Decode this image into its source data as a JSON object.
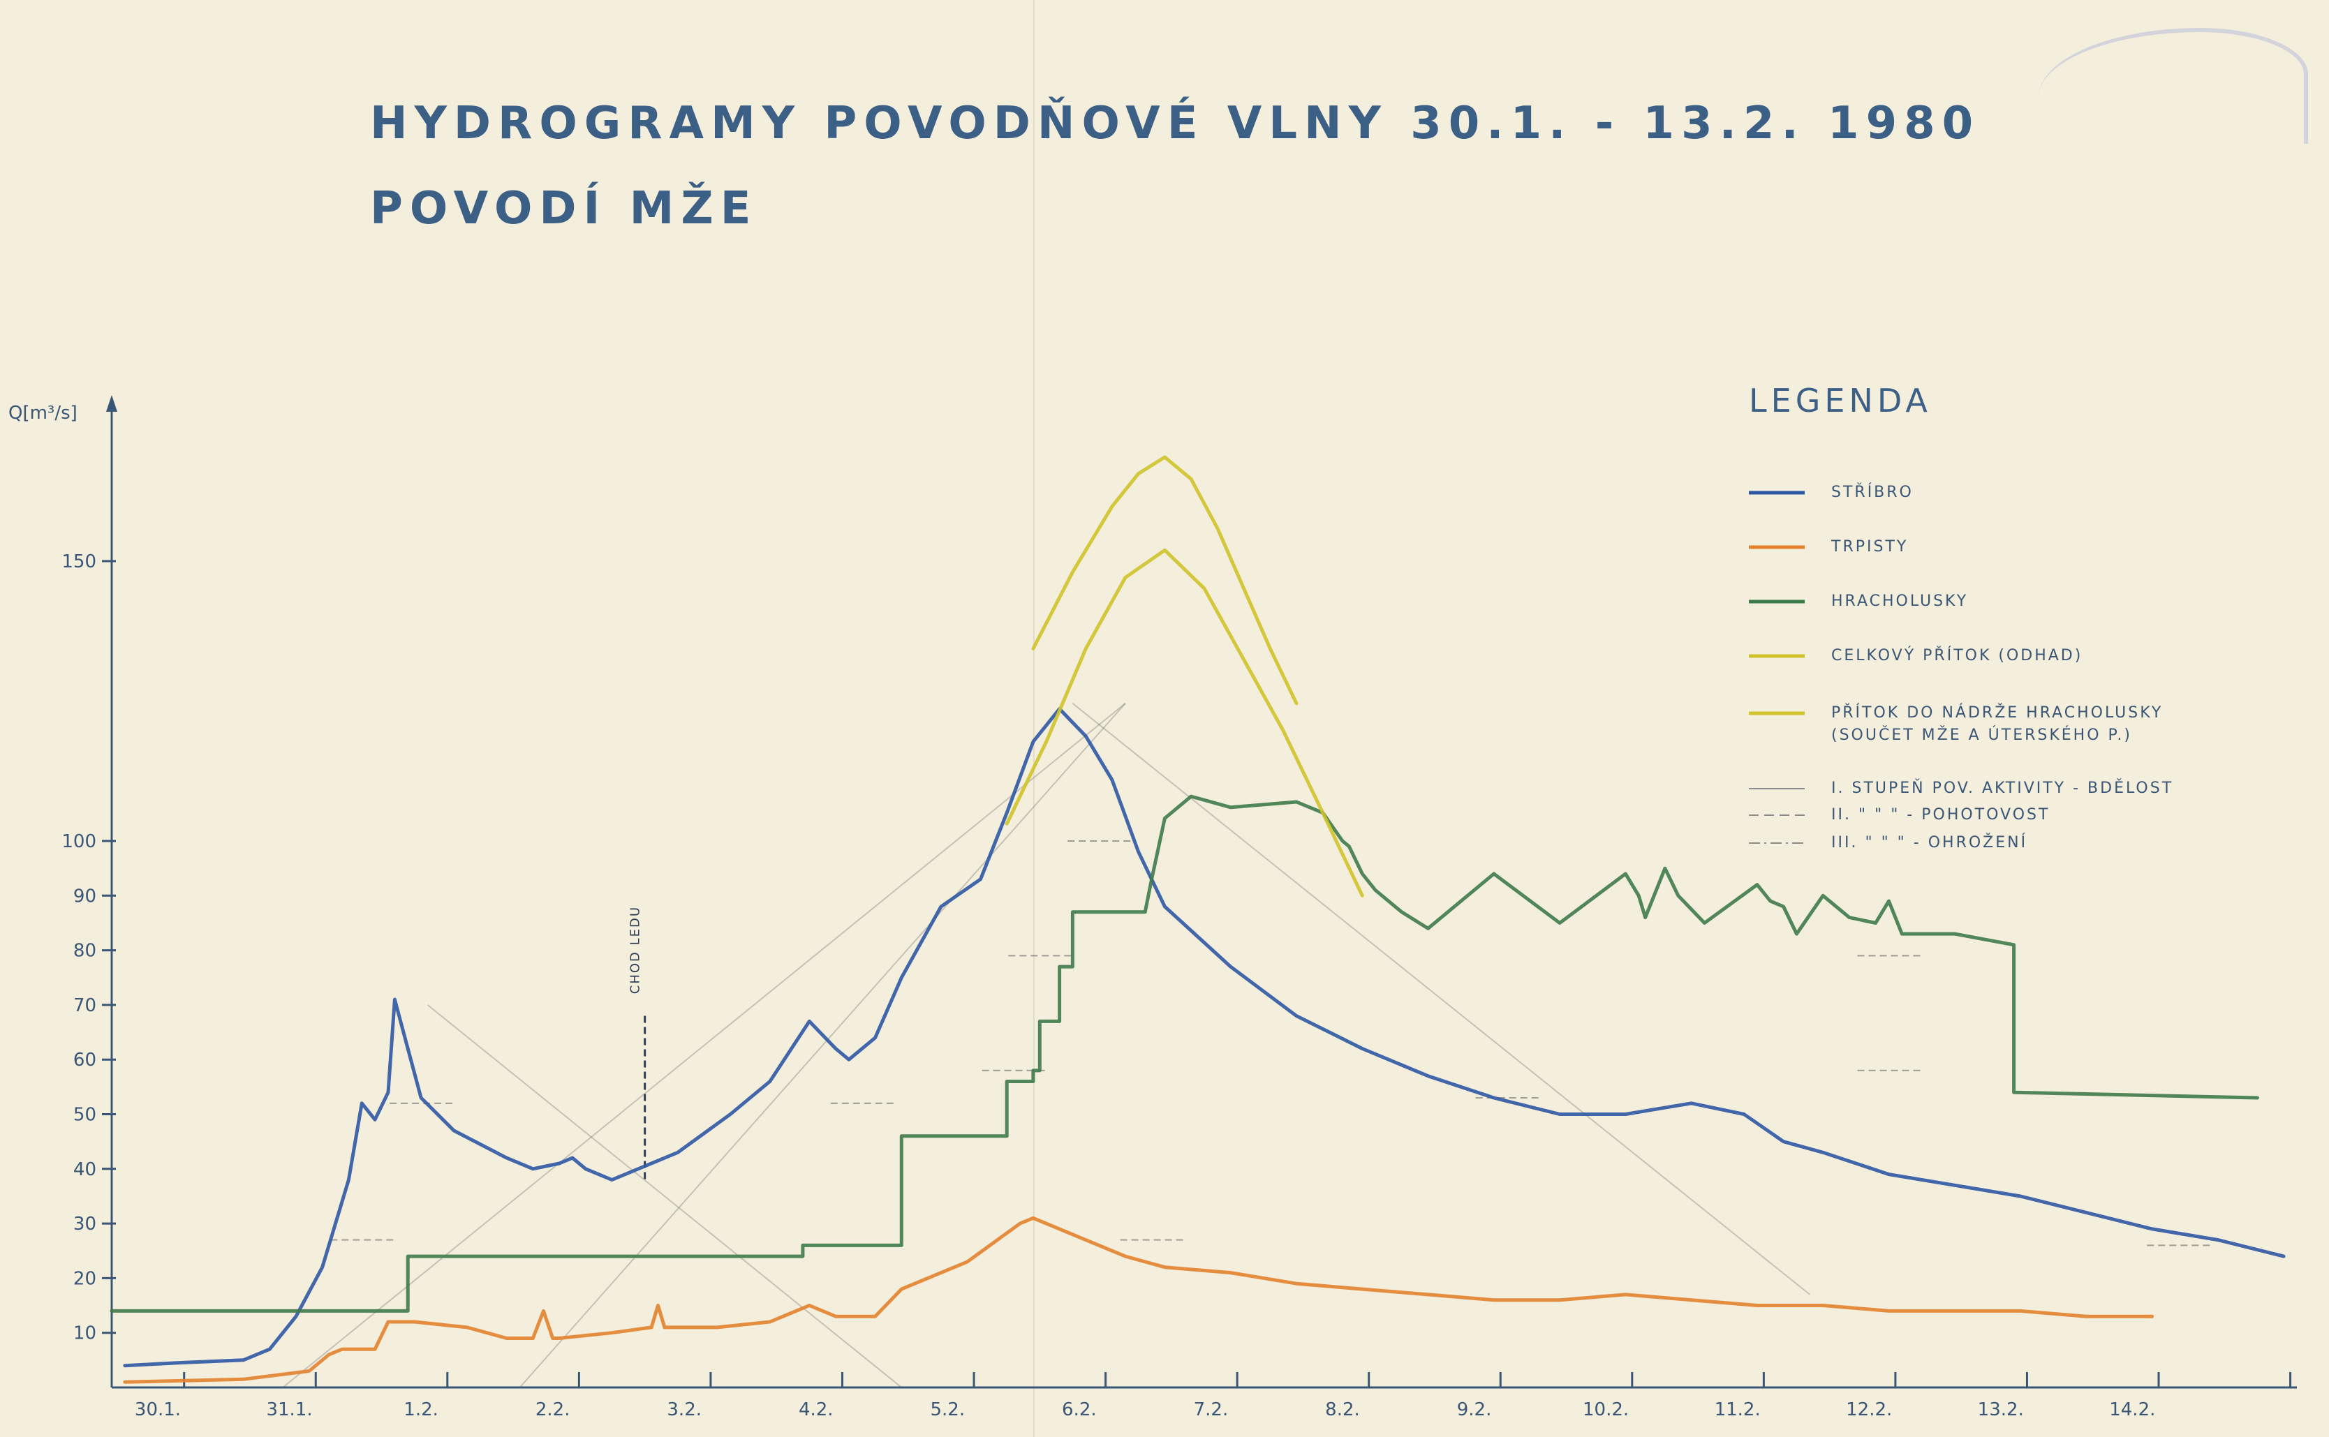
{
  "header": {
    "title": "HYDROGRAMY POVODŇOVÉ VLNY   30.1.  - 13.2. 1980",
    "subtitle": "POVODÍ MŽE"
  },
  "chart_data": {
    "type": "line",
    "ylabel": "Q[m³/s]",
    "ylim": [
      0,
      180
    ],
    "yticks": [
      10,
      20,
      30,
      40,
      50,
      60,
      70,
      80,
      90,
      100,
      150
    ],
    "x_tick_labels": [
      "30.1.",
      "31.1.",
      "1.2.",
      "2.2.",
      "3.2.",
      "4.2.",
      "5.2.",
      "6.2.",
      "7.2.",
      "8.2.",
      "9.2.",
      "10.2.",
      "11.2.",
      "12.2.",
      "13.2.",
      "14.2."
    ],
    "xlim": [
      0,
      16.6
    ],
    "grid": false,
    "legend_position": "top-right",
    "legend": {
      "title": "LEGENDA",
      "items": [
        {
          "label": "STŘÍBRO",
          "color": "#2e56a3",
          "style": "solid"
        },
        {
          "label": "TRPISTY",
          "color": "#e3822e",
          "style": "solid"
        },
        {
          "label": "HRACHOLUSKY",
          "color": "#3e7a4a",
          "style": "solid"
        },
        {
          "label": "CELKOVÝ PŘÍTOK (ODHAD)",
          "color": "#cfc22a",
          "style": "solid"
        },
        {
          "label": "PŘÍTOK DO NÁDRŽE HRACHOLUSKY",
          "label2": "(SOUČET MŽE A ÚTERSKÉHO P.)",
          "color": "#cfc22a",
          "style": "solid"
        },
        {
          "label": "I. STUPEŇ POV. AKTIVITY   - BDĚLOST",
          "color": "#8a8a8a",
          "style": "solid"
        },
        {
          "label": "II.      \"        \"        \"      - POHOTOVOST",
          "color": "#8a8a8a",
          "style": "dashed"
        },
        {
          "label": "III.     \"        \"        \"      - OHROŽENÍ",
          "color": "#8a8a8a",
          "style": "dashdot"
        }
      ]
    },
    "annotations": [
      {
        "text": "CHOD LEDU",
        "x": 4.05
      }
    ],
    "series": [
      {
        "name": "STŘÍBRO",
        "color": "#2e56a3",
        "x": [
          0.1,
          0.5,
          1.0,
          1.2,
          1.4,
          1.6,
          1.8,
          1.9,
          2.0,
          2.1,
          2.15,
          2.25,
          2.35,
          2.6,
          3.0,
          3.2,
          3.4,
          3.5,
          3.6,
          3.8,
          4.0,
          4.3,
          4.7,
          5.0,
          5.3,
          5.5,
          5.6,
          5.8,
          6.0,
          6.3,
          6.6,
          6.8,
          7.0,
          7.2,
          7.4,
          7.6,
          7.8,
          8.0,
          8.5,
          9.0,
          9.5,
          10.0,
          10.5,
          11.0,
          11.5,
          12.0,
          12.4,
          12.7,
          13.0,
          13.5,
          14.0,
          14.5,
          15.0,
          15.5,
          16.0,
          16.5
        ],
        "y": [
          4,
          4.5,
          5,
          7,
          13,
          22,
          38,
          52,
          49,
          54,
          71,
          62,
          53,
          47,
          42,
          40,
          41,
          42,
          40,
          38,
          40,
          43,
          50,
          56,
          67,
          62,
          60,
          64,
          75,
          88,
          93,
          104,
          117,
          123,
          118,
          110,
          98,
          88,
          77,
          68,
          62,
          57,
          53,
          50,
          50,
          52,
          50,
          45,
          43,
          39,
          37,
          35,
          32,
          29,
          27,
          24
        ]
      },
      {
        "name": "TRPISTY",
        "color": "#e3822e",
        "x": [
          0.1,
          1.0,
          1.5,
          1.65,
          1.75,
          2.0,
          2.1,
          2.3,
          2.7,
          3.0,
          3.2,
          3.28,
          3.35,
          3.4,
          3.8,
          4.1,
          4.15,
          4.2,
          4.6,
          5.0,
          5.3,
          5.5,
          5.8,
          6.0,
          6.5,
          6.9,
          7.0,
          7.3,
          7.7,
          8.0,
          8.5,
          9.0,
          9.5,
          10.0,
          10.5,
          11.0,
          11.5,
          12.0,
          12.5,
          13.0,
          13.5,
          14.0,
          14.5,
          15.0,
          15.5
        ],
        "y": [
          1,
          1.5,
          3,
          6,
          7,
          7,
          12,
          12,
          11,
          9,
          9,
          14,
          9,
          9,
          10,
          11,
          15,
          11,
          11,
          12,
          15,
          13,
          13,
          18,
          23,
          30,
          31,
          28,
          24,
          22,
          21,
          19,
          18,
          17,
          16,
          16,
          17,
          16,
          15,
          15,
          14,
          14,
          14,
          13,
          13
        ]
      },
      {
        "name": "HRACHOLUSKY",
        "color": "#3e7a4a",
        "x": [
          0.0,
          2.25,
          2.25,
          5.25,
          5.25,
          6.0,
          6.0,
          6.8,
          6.8,
          7.0,
          7.0,
          7.05,
          7.05,
          7.2,
          7.2,
          7.3,
          7.3,
          7.85,
          7.9,
          8.0,
          8.2,
          8.5,
          9.0,
          9.2,
          9.35,
          9.4,
          9.5,
          9.6,
          9.8,
          10.0,
          10.5,
          11.0,
          11.5,
          11.6,
          11.65,
          11.8,
          11.9,
          12.1,
          12.5,
          12.6,
          12.7,
          12.8,
          13.0,
          13.2,
          13.4,
          13.5,
          13.55,
          13.6,
          14.0,
          14.45,
          14.45,
          16.3
        ],
        "y": [
          14,
          14,
          24,
          24,
          26,
          26,
          46,
          46,
          56,
          56,
          58,
          58,
          67,
          67,
          77,
          77,
          87,
          87,
          93,
          103,
          107,
          105,
          106,
          104,
          100,
          99,
          94,
          91,
          87,
          84,
          94,
          85,
          94,
          90,
          86,
          95,
          90,
          85,
          92,
          89,
          88,
          83,
          90,
          86,
          85,
          89,
          86,
          83,
          83,
          81,
          54,
          53
        ]
      },
      {
        "name": "CELKOVÝ PŘÍTOK (ODHAD)",
        "color": "#cfc22a",
        "x": [
          7.0,
          7.3,
          7.6,
          7.8,
          8.0,
          8.2,
          8.4,
          8.6,
          8.8,
          9.0
        ],
        "y": [
          134,
          148,
          160,
          166,
          169,
          165,
          156,
          145,
          134,
          124
        ]
      },
      {
        "name": "PŘÍTOK DO NÁDRŽE HRACHOLUSKY",
        "color": "#cfc22a",
        "x": [
          6.8,
          7.1,
          7.4,
          7.7,
          8.0,
          8.3,
          8.6,
          8.9,
          9.2,
          9.5
        ],
        "y": [
          102,
          117,
          134,
          147,
          152,
          145,
          132,
          119,
          104,
          90
        ]
      }
    ]
  }
}
